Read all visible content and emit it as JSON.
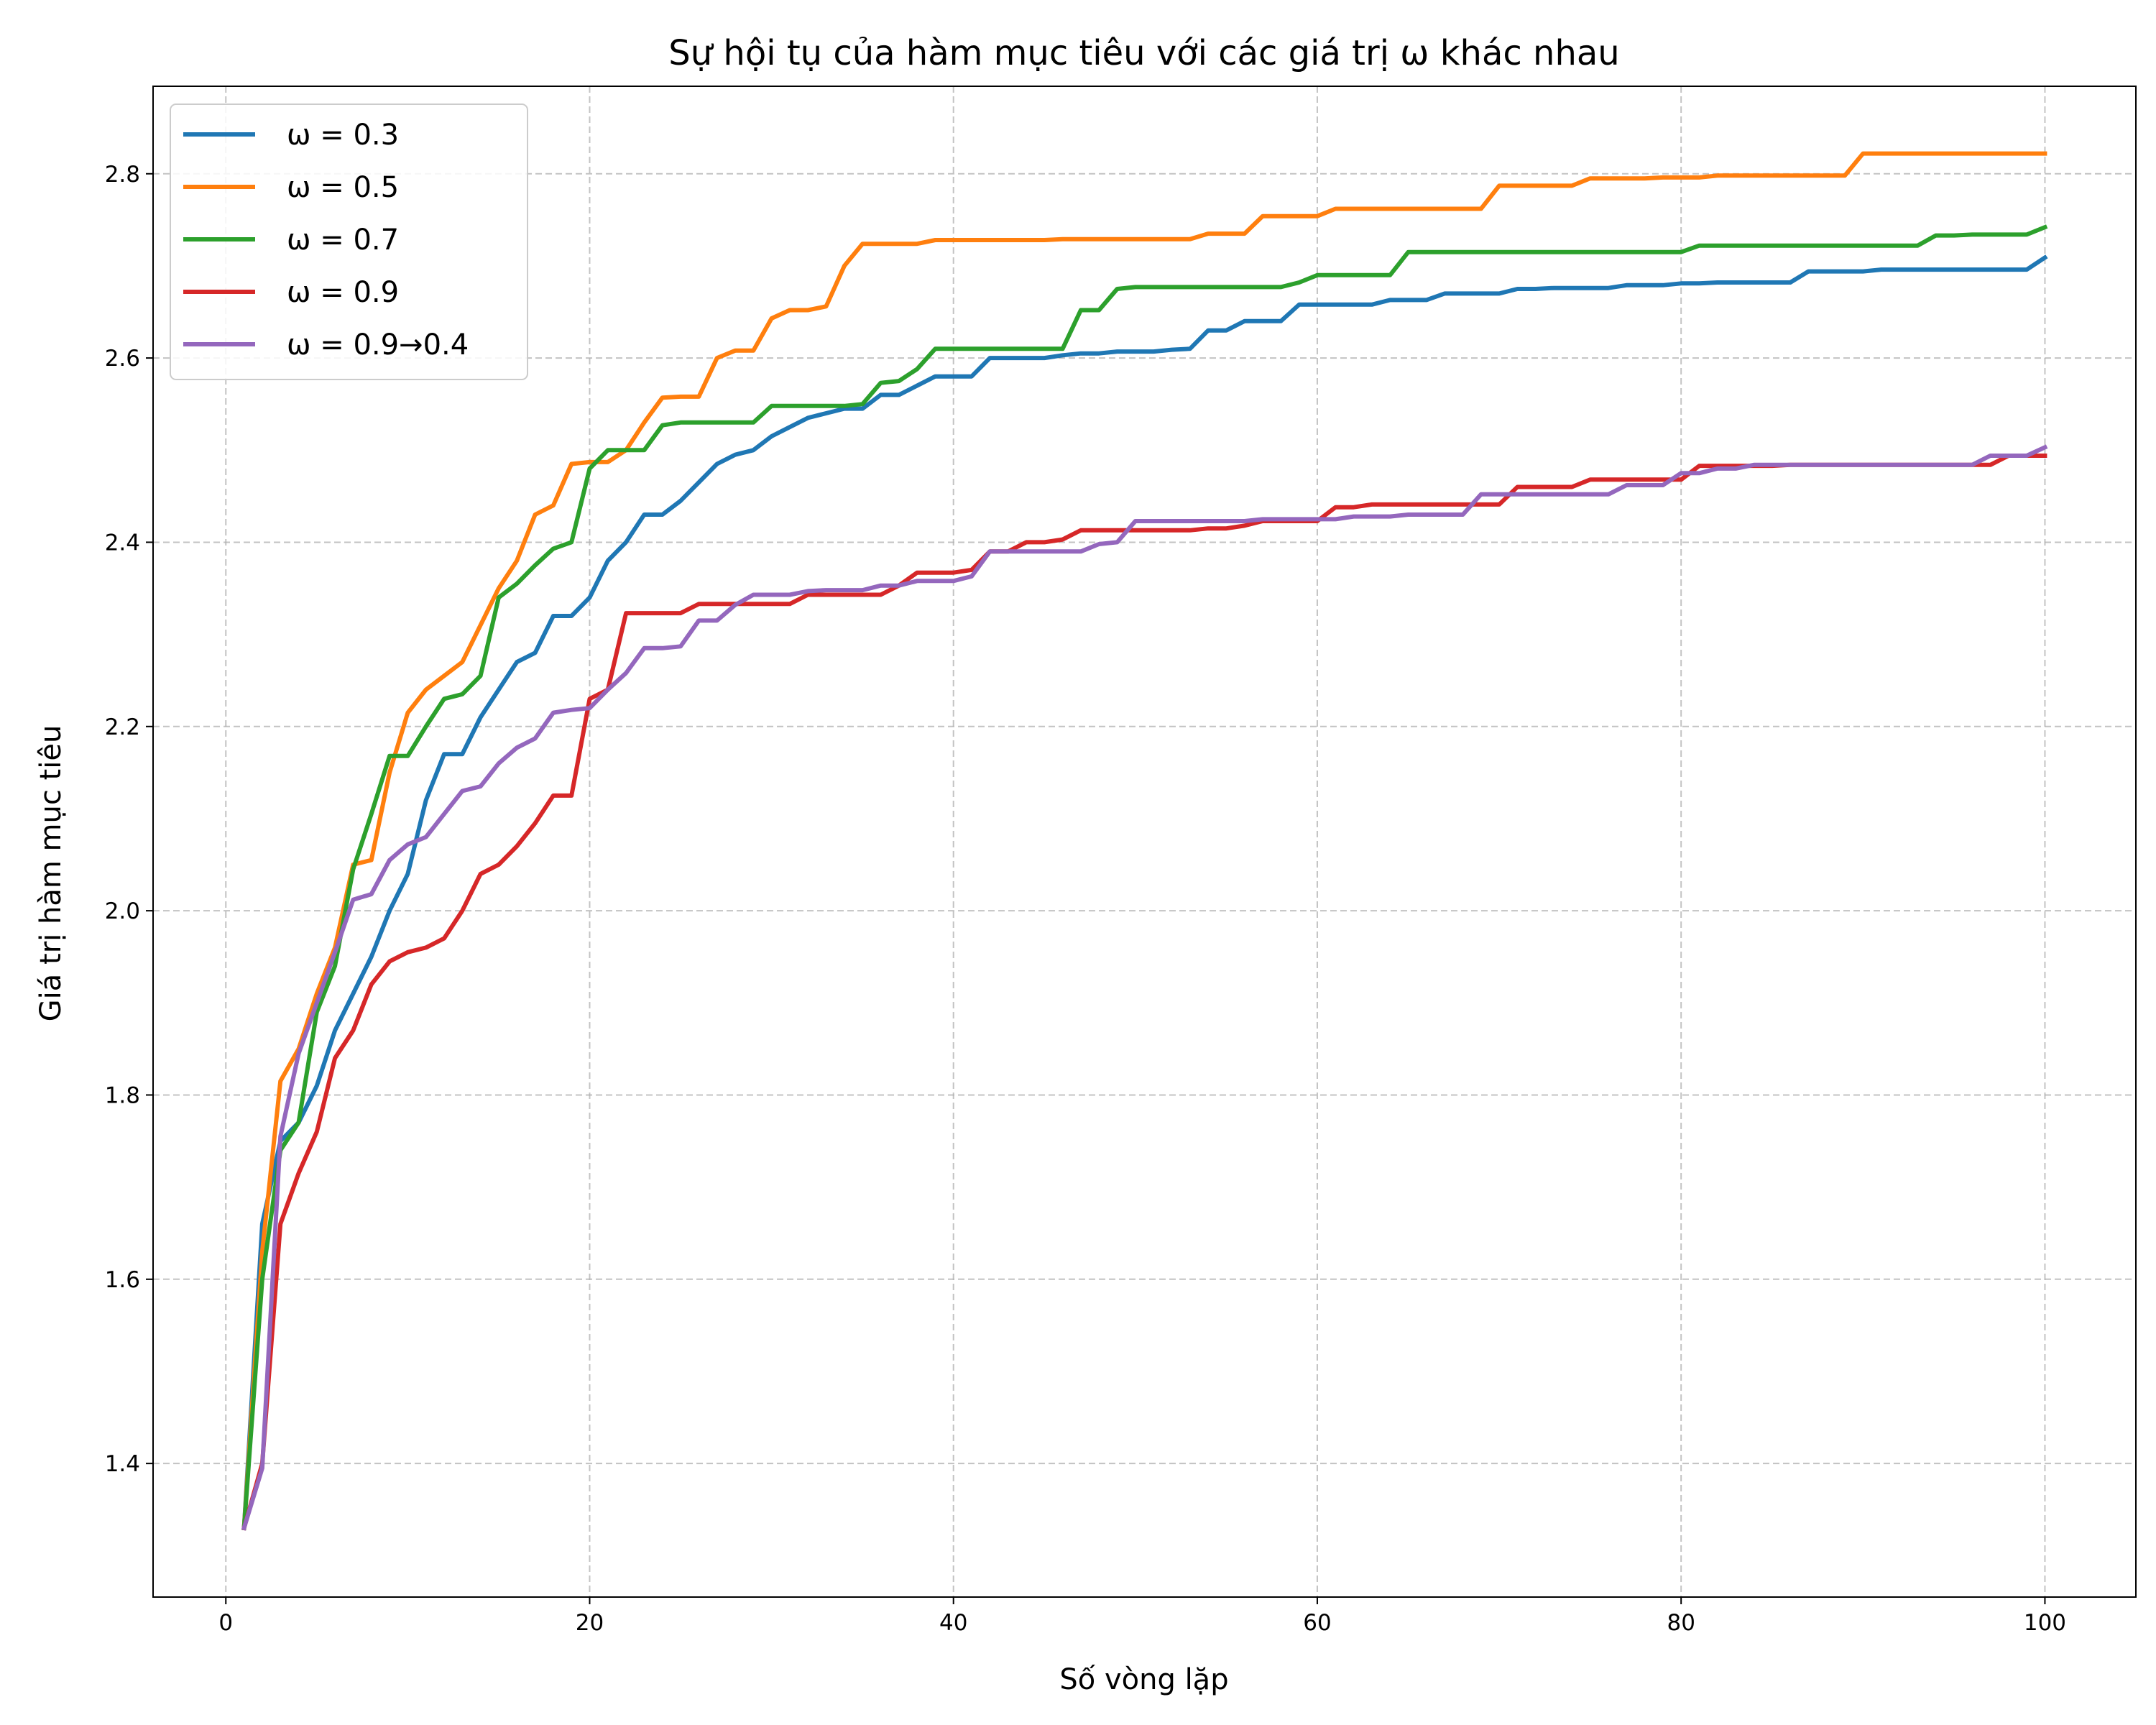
{
  "chart_data": {
    "type": "line",
    "title": "Sự hội tụ của hàm mục tiêu với các giá trị ω khác nhau",
    "xlabel": "Số vòng lặp",
    "ylabel": "Giá trị hàm mục tiêu",
    "xlim": [
      -4,
      105
    ],
    "ylim": [
      1.255,
      2.895
    ],
    "xticks": [
      0,
      20,
      40,
      60,
      80,
      100
    ],
    "yticks": [
      1.4,
      1.6,
      1.8,
      2.0,
      2.2,
      2.4,
      2.6,
      2.8
    ],
    "grid": true,
    "legend_position": "top-left",
    "x": [
      1,
      2,
      3,
      4,
      5,
      6,
      7,
      8,
      9,
      10,
      11,
      12,
      13,
      14,
      15,
      16,
      17,
      18,
      19,
      20,
      21,
      22,
      23,
      24,
      25,
      26,
      27,
      28,
      29,
      30,
      31,
      32,
      33,
      34,
      35,
      36,
      37,
      38,
      39,
      40,
      41,
      42,
      43,
      44,
      45,
      46,
      47,
      48,
      49,
      50,
      51,
      52,
      53,
      54,
      55,
      56,
      57,
      58,
      59,
      60,
      61,
      62,
      63,
      64,
      65,
      66,
      67,
      68,
      69,
      70,
      71,
      72,
      73,
      74,
      75,
      76,
      77,
      78,
      79,
      80,
      81,
      82,
      83,
      84,
      85,
      86,
      87,
      88,
      89,
      90,
      91,
      92,
      93,
      94,
      95,
      96,
      97,
      98,
      99,
      100
    ],
    "series": [
      {
        "name": "ω = 0.3",
        "color": "#1f77b4",
        "values": [
          1.33,
          1.66,
          1.75,
          1.77,
          1.81,
          1.87,
          1.91,
          1.95,
          2.0,
          2.04,
          2.12,
          2.17,
          2.17,
          2.21,
          2.24,
          2.27,
          2.28,
          2.32,
          2.32,
          2.34,
          2.38,
          2.4,
          2.43,
          2.43,
          2.445,
          2.465,
          2.485,
          2.495,
          2.5,
          2.515,
          2.525,
          2.535,
          2.54,
          2.545,
          2.545,
          2.56,
          2.56,
          2.57,
          2.58,
          2.58,
          2.58,
          2.6,
          2.6,
          2.6,
          2.6,
          2.603,
          2.605,
          2.605,
          2.607,
          2.607,
          2.607,
          2.609,
          2.61,
          2.63,
          2.63,
          2.64,
          2.64,
          2.64,
          2.658,
          2.658,
          2.658,
          2.658,
          2.658,
          2.663,
          2.663,
          2.663,
          2.67,
          2.67,
          2.67,
          2.67,
          2.675,
          2.675,
          2.676,
          2.676,
          2.676,
          2.676,
          2.679,
          2.679,
          2.679,
          2.681,
          2.681,
          2.682,
          2.682,
          2.682,
          2.682,
          2.682,
          2.694,
          2.694,
          2.694,
          2.694,
          2.696,
          2.696,
          2.696,
          2.696,
          2.696,
          2.696,
          2.696,
          2.696,
          2.696,
          2.709
        ]
      },
      {
        "name": "ω = 0.5",
        "color": "#ff7f0e",
        "values": [
          1.33,
          1.63,
          1.815,
          1.85,
          1.91,
          1.96,
          2.05,
          2.055,
          2.15,
          2.215,
          2.24,
          2.255,
          2.27,
          2.31,
          2.35,
          2.38,
          2.43,
          2.44,
          2.485,
          2.487,
          2.487,
          2.5,
          2.53,
          2.557,
          2.558,
          2.558,
          2.6,
          2.608,
          2.608,
          2.643,
          2.652,
          2.652,
          2.656,
          2.7,
          2.724,
          2.724,
          2.724,
          2.724,
          2.728,
          2.728,
          2.728,
          2.728,
          2.728,
          2.728,
          2.728,
          2.729,
          2.729,
          2.729,
          2.729,
          2.729,
          2.729,
          2.729,
          2.729,
          2.735,
          2.735,
          2.735,
          2.754,
          2.754,
          2.754,
          2.754,
          2.762,
          2.762,
          2.762,
          2.762,
          2.762,
          2.762,
          2.762,
          2.762,
          2.762,
          2.787,
          2.787,
          2.787,
          2.787,
          2.787,
          2.795,
          2.795,
          2.795,
          2.795,
          2.796,
          2.796,
          2.796,
          2.798,
          2.798,
          2.798,
          2.798,
          2.798,
          2.798,
          2.798,
          2.798,
          2.822,
          2.822,
          2.822,
          2.822,
          2.822,
          2.822,
          2.822,
          2.822,
          2.822,
          2.822,
          2.822
        ]
      },
      {
        "name": "ω = 0.7",
        "color": "#2ca02c",
        "values": [
          1.33,
          1.6,
          1.74,
          1.77,
          1.89,
          1.94,
          2.045,
          2.105,
          2.168,
          2.168,
          2.2,
          2.23,
          2.235,
          2.255,
          2.34,
          2.355,
          2.375,
          2.393,
          2.4,
          2.48,
          2.5,
          2.5,
          2.5,
          2.527,
          2.53,
          2.53,
          2.53,
          2.53,
          2.53,
          2.548,
          2.548,
          2.548,
          2.548,
          2.548,
          2.55,
          2.573,
          2.575,
          2.588,
          2.61,
          2.61,
          2.61,
          2.61,
          2.61,
          2.61,
          2.61,
          2.61,
          2.652,
          2.652,
          2.675,
          2.677,
          2.677,
          2.677,
          2.677,
          2.677,
          2.677,
          2.677,
          2.677,
          2.677,
          2.682,
          2.69,
          2.69,
          2.69,
          2.69,
          2.69,
          2.715,
          2.715,
          2.715,
          2.715,
          2.715,
          2.715,
          2.715,
          2.715,
          2.715,
          2.715,
          2.715,
          2.715,
          2.715,
          2.715,
          2.715,
          2.715,
          2.722,
          2.722,
          2.722,
          2.722,
          2.722,
          2.722,
          2.722,
          2.722,
          2.722,
          2.722,
          2.722,
          2.722,
          2.722,
          2.733,
          2.733,
          2.734,
          2.734,
          2.734,
          2.734,
          2.742
        ]
      },
      {
        "name": "ω = 0.9",
        "color": "#d62728",
        "values": [
          1.33,
          1.4,
          1.66,
          1.715,
          1.76,
          1.84,
          1.87,
          1.92,
          1.945,
          1.955,
          1.96,
          1.97,
          2.0,
          2.04,
          2.05,
          2.07,
          2.095,
          2.125,
          2.125,
          2.23,
          2.24,
          2.323,
          2.323,
          2.323,
          2.323,
          2.333,
          2.333,
          2.333,
          2.333,
          2.333,
          2.333,
          2.343,
          2.343,
          2.343,
          2.343,
          2.343,
          2.353,
          2.367,
          2.367,
          2.367,
          2.37,
          2.39,
          2.39,
          2.4,
          2.4,
          2.403,
          2.413,
          2.413,
          2.413,
          2.413,
          2.413,
          2.413,
          2.413,
          2.415,
          2.415,
          2.418,
          2.423,
          2.423,
          2.423,
          2.423,
          2.438,
          2.438,
          2.441,
          2.441,
          2.441,
          2.441,
          2.441,
          2.441,
          2.441,
          2.441,
          2.46,
          2.46,
          2.46,
          2.46,
          2.468,
          2.468,
          2.468,
          2.468,
          2.468,
          2.468,
          2.483,
          2.483,
          2.483,
          2.483,
          2.483,
          2.484,
          2.484,
          2.484,
          2.484,
          2.484,
          2.484,
          2.484,
          2.484,
          2.484,
          2.484,
          2.484,
          2.484,
          2.494,
          2.494,
          2.494
        ]
      },
      {
        "name": "ω = 0.9→0.4",
        "color": "#9467bd",
        "values": [
          1.33,
          1.395,
          1.755,
          1.845,
          1.9,
          1.955,
          2.012,
          2.018,
          2.055,
          2.072,
          2.08,
          2.105,
          2.13,
          2.135,
          2.16,
          2.177,
          2.187,
          2.215,
          2.218,
          2.22,
          2.24,
          2.258,
          2.285,
          2.285,
          2.287,
          2.315,
          2.315,
          2.332,
          2.343,
          2.343,
          2.343,
          2.347,
          2.348,
          2.348,
          2.348,
          2.353,
          2.353,
          2.358,
          2.358,
          2.358,
          2.363,
          2.39,
          2.39,
          2.39,
          2.39,
          2.39,
          2.39,
          2.398,
          2.4,
          2.423,
          2.423,
          2.423,
          2.423,
          2.423,
          2.423,
          2.423,
          2.425,
          2.425,
          2.425,
          2.425,
          2.425,
          2.428,
          2.428,
          2.428,
          2.43,
          2.43,
          2.43,
          2.43,
          2.452,
          2.452,
          2.452,
          2.452,
          2.452,
          2.452,
          2.452,
          2.452,
          2.462,
          2.462,
          2.462,
          2.475,
          2.475,
          2.48,
          2.48,
          2.484,
          2.484,
          2.484,
          2.484,
          2.484,
          2.484,
          2.484,
          2.484,
          2.484,
          2.484,
          2.484,
          2.484,
          2.484,
          2.494,
          2.494,
          2.494,
          2.503
        ]
      }
    ]
  }
}
